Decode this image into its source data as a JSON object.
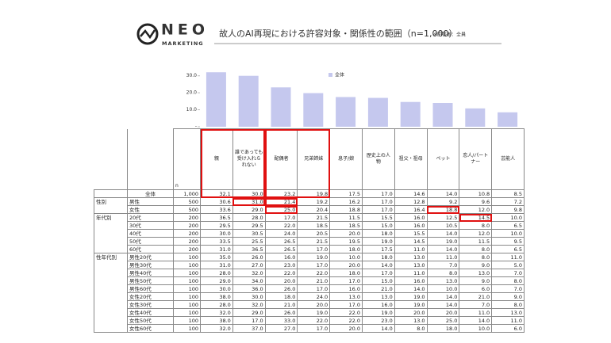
{
  "header": {
    "logo_main": "NEO",
    "logo_sub": "MARKETING",
    "title": "故人のAI再現における許容対象・関係性の範囲（n=1,000）",
    "note": "※回答者：全員"
  },
  "chart_data": {
    "type": "bar",
    "legend": "全体",
    "color": "#c5c8ee",
    "values": [
      32.1,
      30.0,
      23.2,
      19.8,
      17.5,
      17.0,
      14.6,
      14.0,
      10.8,
      8.5
    ],
    "ylim": [
      0,
      35
    ],
    "yticks": [
      {
        "value": 0,
        "label": "-"
      },
      {
        "value": 10,
        "label": "10.0"
      },
      {
        "value": 20,
        "label": "20.0"
      },
      {
        "value": 30,
        "label": "30.0"
      }
    ]
  },
  "table": {
    "n_header": "n",
    "columns": [
      "親",
      "誰であっても受け入れられない",
      "配偶者",
      "兄弟姉妹",
      "息子/娘",
      "歴史上の人物",
      "祖父・祖母",
      "ペット",
      "恋人/パートナー",
      "芸能人"
    ],
    "rows": [
      {
        "label": "全体",
        "n": "1,000",
        "values": [
          "32.1",
          "30.0",
          "23.2",
          "19.8",
          "17.5",
          "17.0",
          "14.6",
          "14.0",
          "10.8",
          "8.5"
        ]
      },
      {
        "group": "性別",
        "label": "男性",
        "n": "500",
        "values": [
          "30.6",
          "31.0",
          "21.4",
          "19.2",
          "16.2",
          "17.0",
          "12.8",
          "9.2",
          "9.6",
          "7.2"
        ]
      },
      {
        "label": "女性",
        "n": "500",
        "values": [
          "33.6",
          "29.0",
          "25.0",
          "20.4",
          "18.8",
          "17.0",
          "16.4",
          "18.8",
          "12.0",
          "9.8"
        ]
      },
      {
        "group": "年代別",
        "label": "20代",
        "n": "200",
        "values": [
          "36.5",
          "28.0",
          "17.0",
          "21.5",
          "11.5",
          "15.5",
          "16.0",
          "12.5",
          "14.5",
          "10.0"
        ]
      },
      {
        "label": "30代",
        "n": "200",
        "values": [
          "29.5",
          "29.5",
          "22.0",
          "18.5",
          "18.5",
          "15.0",
          "16.0",
          "10.5",
          "8.0",
          "6.5"
        ]
      },
      {
        "label": "40代",
        "n": "200",
        "values": [
          "30.0",
          "30.5",
          "24.0",
          "20.5",
          "20.0",
          "18.0",
          "15.5",
          "14.0",
          "12.0",
          "10.0"
        ]
      },
      {
        "label": "50代",
        "n": "200",
        "values": [
          "33.5",
          "25.5",
          "26.5",
          "21.5",
          "19.5",
          "19.0",
          "14.5",
          "19.0",
          "11.5",
          "9.5"
        ]
      },
      {
        "label": "60代",
        "n": "200",
        "values": [
          "31.0",
          "36.5",
          "26.5",
          "17.0",
          "18.0",
          "17.5",
          "11.0",
          "14.0",
          "8.0",
          "6.5"
        ]
      },
      {
        "group": "性年代別",
        "label": "男性20代",
        "n": "100",
        "values": [
          "35.0",
          "26.0",
          "16.0",
          "19.0",
          "10.0",
          "18.0",
          "13.0",
          "11.0",
          "8.0",
          "11.0"
        ]
      },
      {
        "label": "男性30代",
        "n": "100",
        "values": [
          "31.0",
          "27.0",
          "23.0",
          "17.0",
          "20.0",
          "14.0",
          "13.0",
          "7.0",
          "9.0",
          "5.0"
        ]
      },
      {
        "label": "男性40代",
        "n": "100",
        "values": [
          "28.0",
          "32.0",
          "22.0",
          "22.0",
          "18.0",
          "17.0",
          "11.0",
          "8.0",
          "13.0",
          "7.0"
        ]
      },
      {
        "label": "男性50代",
        "n": "100",
        "values": [
          "29.0",
          "34.0",
          "20.0",
          "21.0",
          "17.0",
          "15.0",
          "16.0",
          "13.0",
          "9.0",
          "8.0"
        ]
      },
      {
        "label": "男性60代",
        "n": "100",
        "values": [
          "30.0",
          "36.0",
          "26.0",
          "17.0",
          "16.0",
          "21.0",
          "14.0",
          "10.0",
          "6.0",
          "7.0"
        ]
      },
      {
        "label": "女性20代",
        "n": "100",
        "values": [
          "38.0",
          "30.0",
          "18.0",
          "24.0",
          "13.0",
          "13.0",
          "19.0",
          "14.0",
          "21.0",
          "9.0"
        ]
      },
      {
        "label": "女性30代",
        "n": "100",
        "values": [
          "28.0",
          "32.0",
          "21.0",
          "20.0",
          "17.0",
          "16.0",
          "19.0",
          "14.0",
          "7.0",
          "8.0"
        ]
      },
      {
        "label": "女性40代",
        "n": "100",
        "values": [
          "32.0",
          "29.0",
          "26.0",
          "19.0",
          "22.0",
          "19.0",
          "20.0",
          "20.0",
          "11.0",
          "13.0"
        ]
      },
      {
        "label": "女性50代",
        "n": "100",
        "values": [
          "38.0",
          "17.0",
          "33.0",
          "22.0",
          "22.0",
          "23.0",
          "13.0",
          "25.0",
          "14.0",
          "11.0"
        ]
      },
      {
        "label": "女性60代",
        "n": "100",
        "values": [
          "32.0",
          "37.0",
          "27.0",
          "17.0",
          "20.0",
          "14.0",
          "8.0",
          "18.0",
          "10.0",
          "6.0"
        ]
      }
    ]
  }
}
